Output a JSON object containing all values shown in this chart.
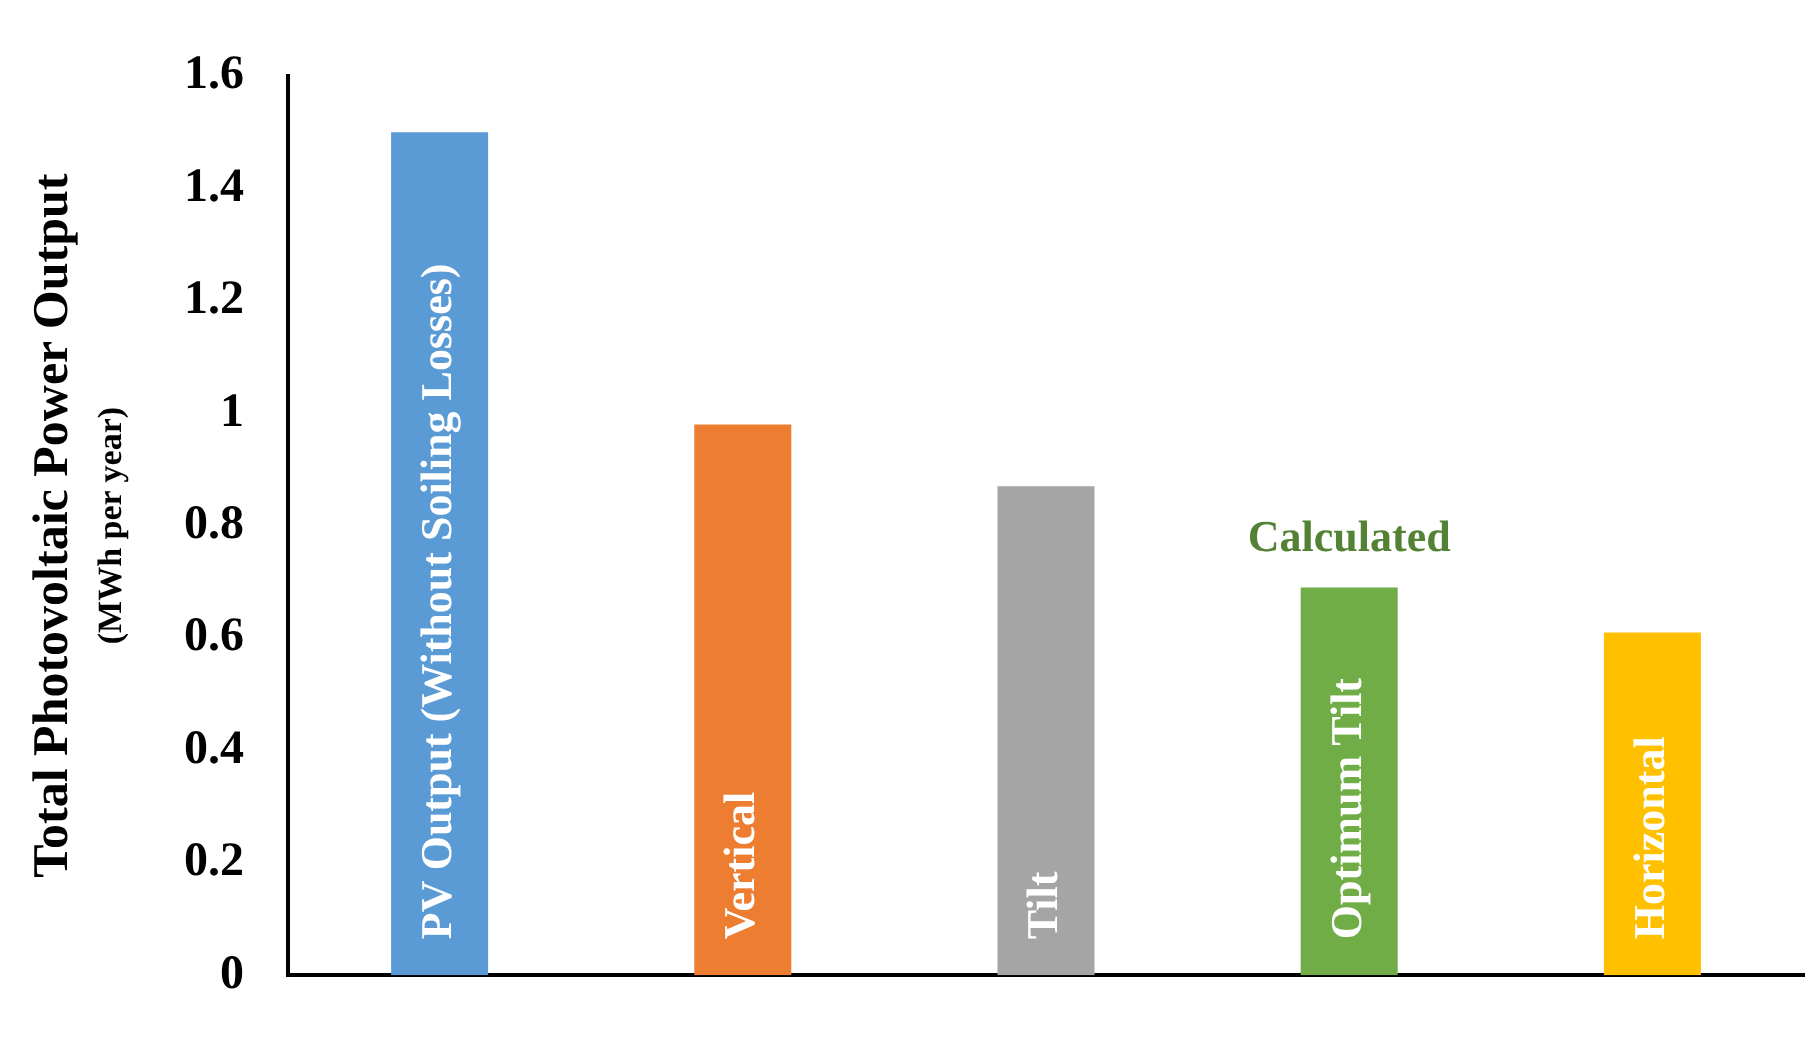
{
  "chart_data": {
    "type": "bar",
    "ylabel": "Total Photovoltaic Power Output\n(MWh per year)",
    "categories": [
      "PV Output (Without Soiling Losses)",
      "Vertical",
      "Tilt",
      "Optimum Tilt",
      "Horizontal"
    ],
    "values": [
      1.5,
      0.98,
      0.87,
      0.69,
      0.61
    ],
    "colors": [
      "#5b9bd5",
      "#ed7d31",
      "#a5a5a5",
      "#70ad47",
      "#ffc000"
    ],
    "ylim": [
      0,
      1.6
    ],
    "yticks": [
      0,
      0.2,
      0.4,
      0.6,
      0.8,
      1,
      1.2,
      1.4,
      1.6
    ],
    "grid": false,
    "legend": false,
    "tick_labels": "y",
    "annotations": [
      "Calculated"
    ]
  }
}
